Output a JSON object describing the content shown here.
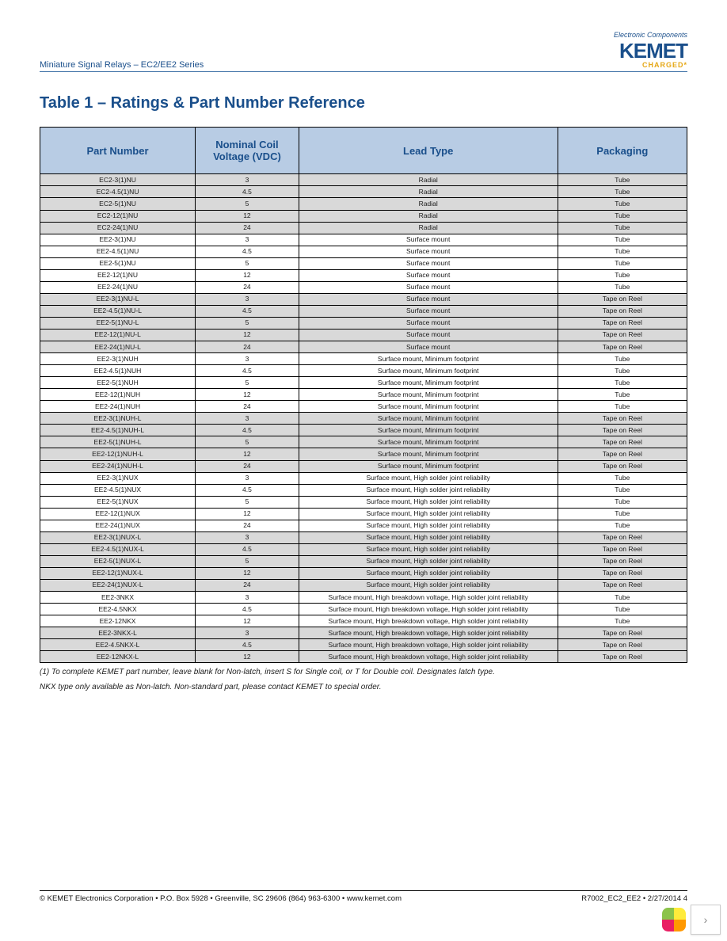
{
  "header": {
    "doc_series": "Miniature Signal Relays – EC2/EE2 Series",
    "logo_tagline": "Electronic Components",
    "logo_name": "KEMET",
    "logo_sub": "CHARGED*"
  },
  "title": "Table 1 – Ratings & Part Number Reference",
  "columns": {
    "part": "Part Number",
    "volt": "Nominal Coil Voltage (VDC)",
    "lead": "Lead Type",
    "pack": "Packaging"
  },
  "rows": [
    {
      "p": "EC2-3(1)NU",
      "v": "3",
      "l": "Radial",
      "k": "Tube",
      "s": true
    },
    {
      "p": "EC2-4.5(1)NU",
      "v": "4.5",
      "l": "Radial",
      "k": "Tube",
      "s": true
    },
    {
      "p": "EC2-5(1)NU",
      "v": "5",
      "l": "Radial",
      "k": "Tube",
      "s": true
    },
    {
      "p": "EC2-12(1)NU",
      "v": "12",
      "l": "Radial",
      "k": "Tube",
      "s": true
    },
    {
      "p": "EC2-24(1)NU",
      "v": "24",
      "l": "Radial",
      "k": "Tube",
      "s": true
    },
    {
      "p": "EE2-3(1)NU",
      "v": "3",
      "l": "Surface mount",
      "k": "Tube",
      "s": false
    },
    {
      "p": "EE2-4.5(1)NU",
      "v": "4.5",
      "l": "Surface mount",
      "k": "Tube",
      "s": false
    },
    {
      "p": "EE2-5(1)NU",
      "v": "5",
      "l": "Surface mount",
      "k": "Tube",
      "s": false
    },
    {
      "p": "EE2-12(1)NU",
      "v": "12",
      "l": "Surface mount",
      "k": "Tube",
      "s": false
    },
    {
      "p": "EE2-24(1)NU",
      "v": "24",
      "l": "Surface mount",
      "k": "Tube",
      "s": false
    },
    {
      "p": "EE2-3(1)NU-L",
      "v": "3",
      "l": "Surface mount",
      "k": "Tape on Reel",
      "s": true
    },
    {
      "p": "EE2-4.5(1)NU-L",
      "v": "4.5",
      "l": "Surface mount",
      "k": "Tape on Reel",
      "s": true
    },
    {
      "p": "EE2-5(1)NU-L",
      "v": "5",
      "l": "Surface mount",
      "k": "Tape on Reel",
      "s": true
    },
    {
      "p": "EE2-12(1)NU-L",
      "v": "12",
      "l": "Surface mount",
      "k": "Tape on Reel",
      "s": true
    },
    {
      "p": "EE2-24(1)NU-L",
      "v": "24",
      "l": "Surface mount",
      "k": "Tape on Reel",
      "s": true
    },
    {
      "p": "EE2-3(1)NUH",
      "v": "3",
      "l": "Surface mount, Minimum footprint",
      "k": "Tube",
      "s": false
    },
    {
      "p": "EE2-4.5(1)NUH",
      "v": "4.5",
      "l": "Surface mount, Minimum footprint",
      "k": "Tube",
      "s": false
    },
    {
      "p": "EE2-5(1)NUH",
      "v": "5",
      "l": "Surface mount, Minimum footprint",
      "k": "Tube",
      "s": false
    },
    {
      "p": "EE2-12(1)NUH",
      "v": "12",
      "l": "Surface mount, Minimum footprint",
      "k": "Tube",
      "s": false
    },
    {
      "p": "EE2-24(1)NUH",
      "v": "24",
      "l": "Surface mount, Minimum footprint",
      "k": "Tube",
      "s": false
    },
    {
      "p": "EE2-3(1)NUH-L",
      "v": "3",
      "l": "Surface mount, Minimum footprint",
      "k": "Tape on Reel",
      "s": true
    },
    {
      "p": "EE2-4.5(1)NUH-L",
      "v": "4.5",
      "l": "Surface mount, Minimum footprint",
      "k": "Tape on Reel",
      "s": true
    },
    {
      "p": "EE2-5(1)NUH-L",
      "v": "5",
      "l": "Surface mount, Minimum footprint",
      "k": "Tape on Reel",
      "s": true
    },
    {
      "p": "EE2-12(1)NUH-L",
      "v": "12",
      "l": "Surface mount, Minimum footprint",
      "k": "Tape on Reel",
      "s": true
    },
    {
      "p": "EE2-24(1)NUH-L",
      "v": "24",
      "l": "Surface mount, Minimum footprint",
      "k": "Tape on Reel",
      "s": true
    },
    {
      "p": "EE2-3(1)NUX",
      "v": "3",
      "l": "Surface mount, High solder joint reliability",
      "k": "Tube",
      "s": false
    },
    {
      "p": "EE2-4.5(1)NUX",
      "v": "4.5",
      "l": "Surface mount, High solder joint reliability",
      "k": "Tube",
      "s": false
    },
    {
      "p": "EE2-5(1)NUX",
      "v": "5",
      "l": "Surface mount, High solder joint reliability",
      "k": "Tube",
      "s": false
    },
    {
      "p": "EE2-12(1)NUX",
      "v": "12",
      "l": "Surface mount, High solder joint reliability",
      "k": "Tube",
      "s": false
    },
    {
      "p": "EE2-24(1)NUX",
      "v": "24",
      "l": "Surface mount, High solder joint reliability",
      "k": "Tube",
      "s": false
    },
    {
      "p": "EE2-3(1)NUX-L",
      "v": "3",
      "l": "Surface mount, High solder joint reliability",
      "k": "Tape on Reel",
      "s": true
    },
    {
      "p": "EE2-4.5(1)NUX-L",
      "v": "4.5",
      "l": "Surface mount, High solder joint reliability",
      "k": "Tape on Reel",
      "s": true
    },
    {
      "p": "EE2-5(1)NUX-L",
      "v": "5",
      "l": "Surface mount, High solder joint reliability",
      "k": "Tape on Reel",
      "s": true
    },
    {
      "p": "EE2-12(1)NUX-L",
      "v": "12",
      "l": "Surface mount, High solder joint reliability",
      "k": "Tape on Reel",
      "s": true
    },
    {
      "p": "EE2-24(1)NUX-L",
      "v": "24",
      "l": "Surface mount, High solder joint reliability",
      "k": "Tape on Reel",
      "s": true
    },
    {
      "p": "EE2-3NKX",
      "v": "3",
      "l": "Surface mount, High breakdown voltage, High solder joint reliability",
      "k": "Tube",
      "s": false
    },
    {
      "p": "EE2-4.5NKX",
      "v": "4.5",
      "l": "Surface mount, High breakdown voltage, High solder joint reliability",
      "k": "Tube",
      "s": false
    },
    {
      "p": "EE2-12NKX",
      "v": "12",
      "l": "Surface mount, High breakdown voltage, High solder joint reliability",
      "k": "Tube",
      "s": false
    },
    {
      "p": "EE2-3NKX-L",
      "v": "3",
      "l": "Surface mount, High breakdown voltage, High solder joint reliability",
      "k": "Tape on Reel",
      "s": true
    },
    {
      "p": "EE2-4.5NKX-L",
      "v": "4.5",
      "l": "Surface mount, High breakdown voltage, High solder joint reliability",
      "k": "Tape on Reel",
      "s": true
    },
    {
      "p": "EE2-12NKX-L",
      "v": "12",
      "l": "Surface mount, High breakdown voltage, High solder joint reliability",
      "k": "Tape on Reel",
      "s": true
    }
  ],
  "footnotes": {
    "line1": "(1) To complete KEMET part number, leave blank for Non-latch, insert S for Single coil, or T for Double coil. Designates latch type.",
    "line2": "  NKX type only available as Non-latch. Non-standard part, please contact KEMET to special order."
  },
  "footer": {
    "left": "© KEMET Electronics Corporation • P.O. Box 5928 • Greenville, SC 29606 (864) 963-6300 • www.kemet.com",
    "right": "R7002_EC2_EE2 • 2/27/2014     4"
  },
  "pager": {
    "petals": [
      "#8bc34a",
      "#ffeb3b",
      "#ff9800",
      "#e91e63"
    ],
    "next": "›"
  }
}
